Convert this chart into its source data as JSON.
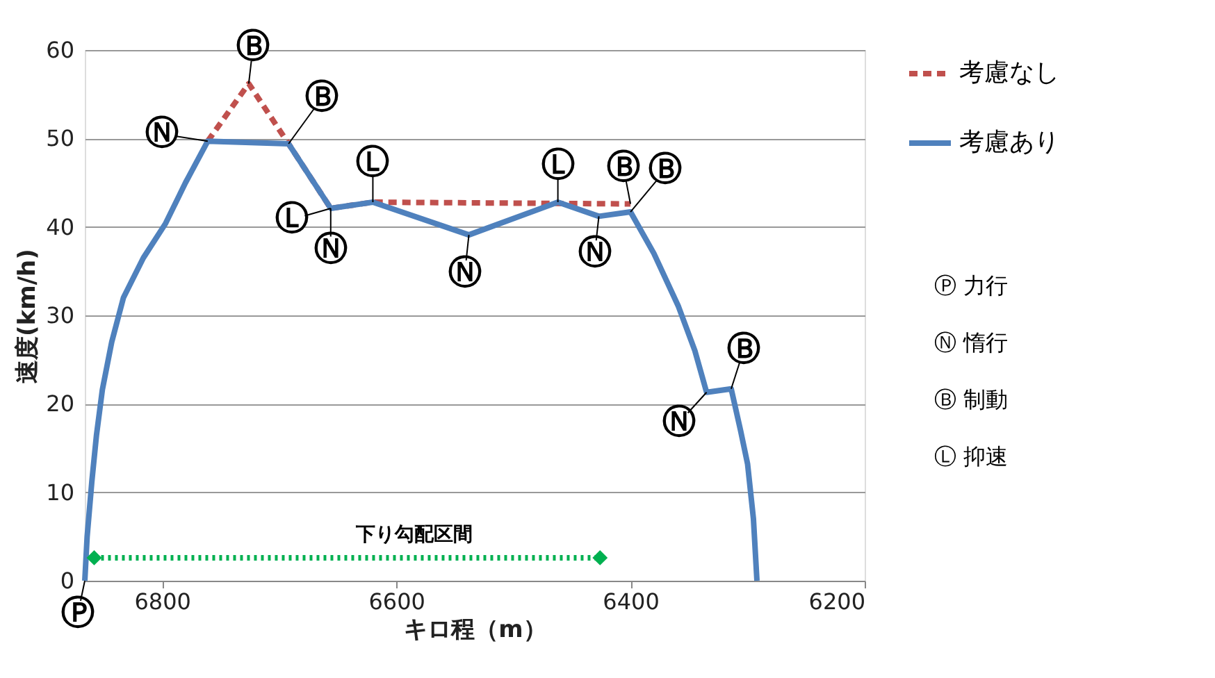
{
  "chart_data": {
    "type": "line",
    "xlabel": "キロ程（m）",
    "ylabel": "速度(km/h)",
    "xlim": [
      6866,
      6200
    ],
    "xticks": [
      {
        "value": 6800,
        "label": "6800"
      },
      {
        "value": 6600,
        "label": "6600"
      },
      {
        "value": 6400,
        "label": "6400"
      },
      {
        "value": 6200,
        "label": "6200"
      }
    ],
    "ylim": [
      0,
      60
    ],
    "yticks": [
      0,
      10,
      20,
      30,
      40,
      50,
      60
    ],
    "grid": "y",
    "legend": "right",
    "series": [
      {
        "name": "考慮なし",
        "color": "#c0504d",
        "line_style": "dashed",
        "marker": "none",
        "x": [
          6761,
          6726,
          6692,
          6656,
          6620,
          6400
        ],
        "values": [
          49.7,
          56.2,
          49.4,
          42.1,
          42.8,
          42.6
        ]
      },
      {
        "name": "考慮あり",
        "color": "#4f81bd",
        "line_style": "solid",
        "marker": "none",
        "x": [
          6866,
          6864,
          6860,
          6856,
          6851,
          6843,
          6833,
          6816,
          6797,
          6780,
          6761,
          6692,
          6656,
          6620,
          6538,
          6462,
          6427,
          6400,
          6380,
          6359,
          6345,
          6335,
          6314,
          6306,
          6300,
          6295,
          6292
        ],
        "values": [
          0,
          5,
          11.2,
          16.5,
          21.6,
          27,
          32.0,
          36.5,
          40.4,
          45,
          49.7,
          49.4,
          42.1,
          42.8,
          39.1,
          42.8,
          41.2,
          41.7,
          37,
          31.0,
          26,
          21.3,
          21.7,
          17,
          13.2,
          7,
          0
        ]
      },
      {
        "color": "#00b050",
        "line_style": "dotted",
        "marker": "diamond",
        "x": [
          6858,
          6426
        ],
        "values": [
          2.6,
          2.6
        ]
      }
    ],
    "annotations": [
      {
        "text": "Ⓟ",
        "x": 6866,
        "y": 0
      },
      {
        "text": "Ⓝ",
        "x": 6761,
        "y": 49.7
      },
      {
        "text": "Ⓑ",
        "x": 6726,
        "y": 56.2
      },
      {
        "text": "Ⓑ",
        "x": 6692,
        "y": 49.4
      },
      {
        "text": "Ⓛ",
        "x": 6656,
        "y": 42.1
      },
      {
        "text": "Ⓝ",
        "x": 6656,
        "y": 42.1
      },
      {
        "text": "Ⓛ",
        "x": 6620,
        "y": 42.8
      },
      {
        "text": "Ⓝ",
        "x": 6538,
        "y": 39.1
      },
      {
        "text": "Ⓛ",
        "x": 6462,
        "y": 42.8
      },
      {
        "text": "Ⓝ",
        "x": 6427,
        "y": 41.2
      },
      {
        "text": "Ⓑ",
        "x": 6400,
        "y": 42.6
      },
      {
        "text": "Ⓑ",
        "x": 6400,
        "y": 41.7
      },
      {
        "text": "Ⓝ",
        "x": 6335,
        "y": 21.3
      },
      {
        "text": "Ⓑ",
        "x": 6314,
        "y": 21.7
      },
      "下り勾配区間",
      "Ⓟ 力行",
      "Ⓝ 惰行",
      "Ⓑ 制動",
      "Ⓛ 抑速"
    ]
  }
}
